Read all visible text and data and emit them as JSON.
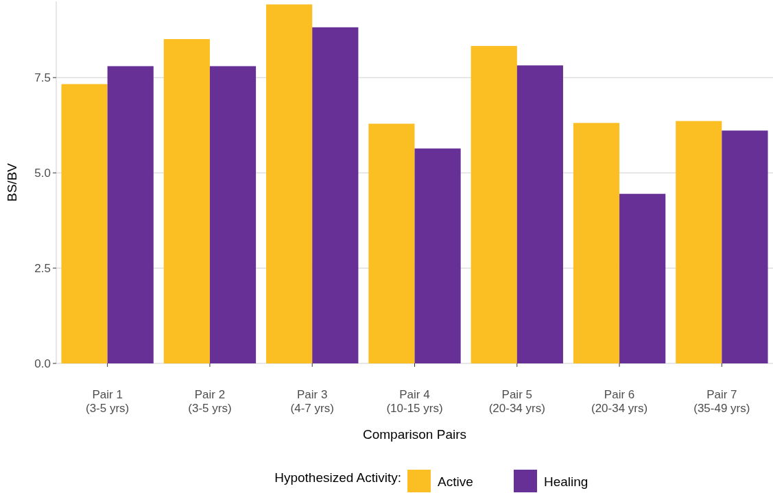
{
  "chart_data": {
    "type": "bar",
    "xlabel": "Comparison Pairs",
    "ylabel": "BS/BV",
    "legend_title": "Hypothesized Activity:",
    "categories": [
      "Pair 1\n(3-5 yrs)",
      "Pair 2\n(3-5 yrs)",
      "Pair 3\n(4-7 yrs)",
      "Pair 4\n(10-15 yrs)",
      "Pair 5\n(20-34 yrs)",
      "Pair 6\n(20-34 yrs)",
      "Pair 7\n(35-49 yrs)"
    ],
    "series": [
      {
        "name": "Active",
        "color": "#fbbf24",
        "values": [
          7.33,
          8.51,
          9.42,
          6.29,
          8.33,
          6.31,
          6.36
        ]
      },
      {
        "name": "Healing",
        "color": "#663096",
        "values": [
          7.8,
          7.8,
          8.82,
          5.64,
          7.82,
          4.45,
          6.11
        ]
      }
    ],
    "ylim": [
      0,
      9.5
    ],
    "yticks": [
      {
        "value": 0,
        "label": "0.0"
      },
      {
        "value": 2.5,
        "label": "2.5"
      },
      {
        "value": 5,
        "label": "5.0"
      },
      {
        "value": 7.5,
        "label": "7.5"
      }
    ],
    "grid": "y",
    "legend": "bottom"
  }
}
